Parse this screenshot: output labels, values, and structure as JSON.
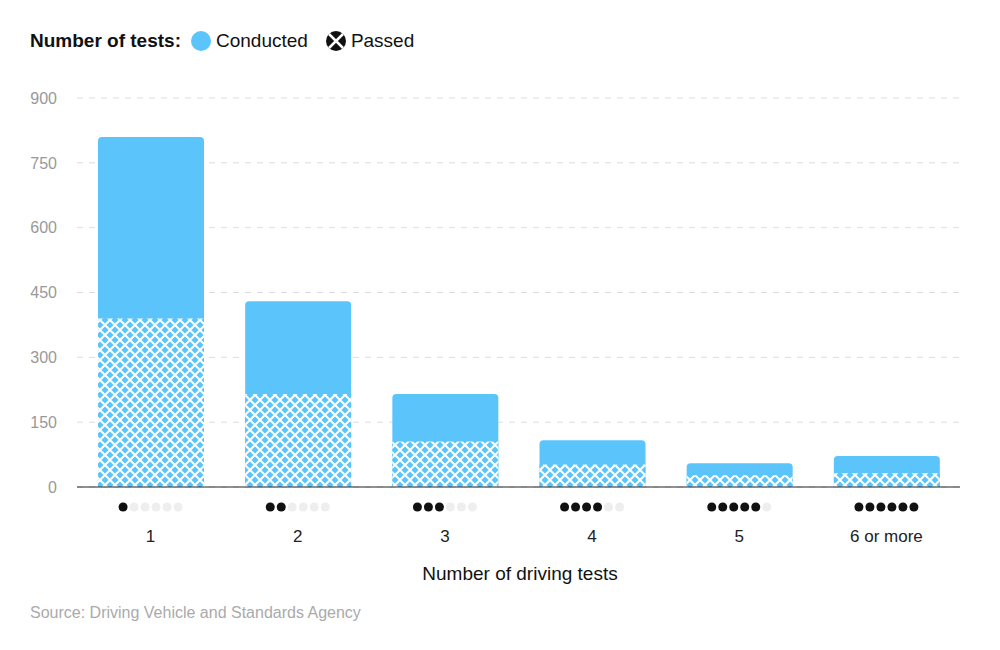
{
  "chart_data": {
    "type": "bar",
    "legend_title": "Number of tests:",
    "x_label": "Number of driving tests",
    "source": "Source: Driving Vehicle and Standards Agency",
    "categories": [
      "1",
      "2",
      "3",
      "4",
      "5",
      "6 or more"
    ],
    "series": [
      {
        "name": "Conducted",
        "color": "#5bc5fb",
        "values": [
          810,
          430,
          215,
          108,
          55,
          72
        ]
      },
      {
        "name": "Passed",
        "color": "#5bc5fb",
        "values": [
          390,
          215,
          105,
          52,
          27,
          32
        ]
      }
    ],
    "stacked": false,
    "ylim": [
      0,
      900
    ],
    "yticks": [
      0,
      150,
      300,
      450,
      600,
      750,
      900
    ],
    "grid": true,
    "legend": "top-left"
  }
}
